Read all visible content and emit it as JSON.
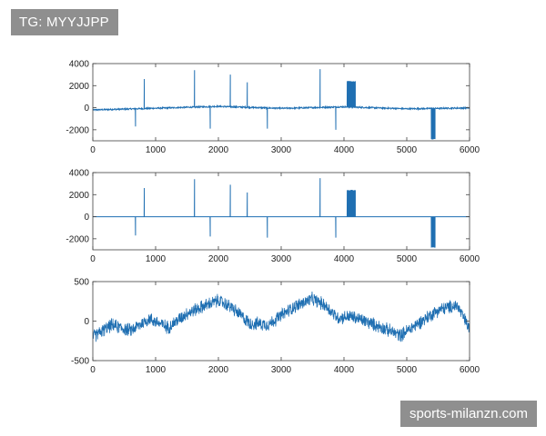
{
  "watermarks": {
    "top_left": "TG: MYYJJPP",
    "bottom_right": "sports-milanzn.com"
  },
  "colors": {
    "line": "#1f6fb2",
    "axes": "#404040"
  },
  "chart_data": [
    {
      "type": "line",
      "xlim": [
        0,
        6000
      ],
      "ylim": [
        -3000,
        4000
      ],
      "x_ticks": [
        0,
        1000,
        2000,
        3000,
        4000,
        5000,
        6000
      ],
      "y_ticks": [
        -2000,
        0,
        2000,
        4000
      ],
      "grid": false,
      "baseline": {
        "x": [
          0,
          1000,
          2000,
          3000,
          4000,
          5000,
          6000
        ],
        "y": [
          -200,
          -50,
          120,
          -60,
          80,
          -100,
          -20
        ]
      },
      "spikes": [
        {
          "x": 680,
          "y": -1700
        },
        {
          "x": 820,
          "y": 2600
        },
        {
          "x": 1620,
          "y": 3400
        },
        {
          "x": 1870,
          "y": -1900
        },
        {
          "x": 2190,
          "y": 3000
        },
        {
          "x": 2460,
          "y": 2300
        },
        {
          "x": 2780,
          "y": -1900
        },
        {
          "x": 3620,
          "y": 3500
        },
        {
          "x": 3870,
          "y": -2000
        }
      ],
      "pulses": [
        {
          "x_start": 4050,
          "x_end": 4180,
          "y": 2400
        },
        {
          "x_start": 5390,
          "x_end": 5450,
          "y": -2850
        }
      ]
    },
    {
      "type": "line",
      "xlim": [
        0,
        6000
      ],
      "ylim": [
        -3000,
        4000
      ],
      "x_ticks": [
        0,
        1000,
        2000,
        3000,
        4000,
        5000,
        6000
      ],
      "y_ticks": [
        -2000,
        0,
        2000,
        4000
      ],
      "grid": false,
      "baseline": {
        "x": [
          0,
          6000
        ],
        "y": [
          0,
          0
        ]
      },
      "spikes": [
        {
          "x": 680,
          "y": -1700
        },
        {
          "x": 820,
          "y": 2600
        },
        {
          "x": 1620,
          "y": 3400
        },
        {
          "x": 1870,
          "y": -1800
        },
        {
          "x": 2190,
          "y": 2900
        },
        {
          "x": 2460,
          "y": 2200
        },
        {
          "x": 2780,
          "y": -1900
        },
        {
          "x": 3620,
          "y": 3500
        },
        {
          "x": 3870,
          "y": -1900
        }
      ],
      "pulses": [
        {
          "x_start": 4050,
          "x_end": 4180,
          "y": 2400
        },
        {
          "x_start": 5390,
          "x_end": 5450,
          "y": -2800
        }
      ]
    },
    {
      "type": "line",
      "xlim": [
        0,
        6000
      ],
      "ylim": [
        -500,
        500
      ],
      "x_ticks": [
        0,
        1000,
        2000,
        3000,
        4000,
        5000,
        6000
      ],
      "y_ticks": [
        -500,
        0,
        500
      ],
      "grid": false,
      "trend": {
        "x": [
          0,
          300,
          600,
          900,
          1200,
          1500,
          1800,
          2000,
          2200,
          2500,
          2800,
          3200,
          3500,
          3700,
          3900,
          4100,
          4300,
          4600,
          4900,
          5200,
          5500,
          5800,
          6000
        ],
        "y": [
          -200,
          -50,
          -120,
          30,
          -80,
          100,
          200,
          260,
          180,
          -30,
          -40,
          180,
          280,
          200,
          40,
          60,
          10,
          -80,
          -180,
          -20,
          140,
          200,
          -100
        ]
      },
      "noise_amplitude": 90
    }
  ]
}
